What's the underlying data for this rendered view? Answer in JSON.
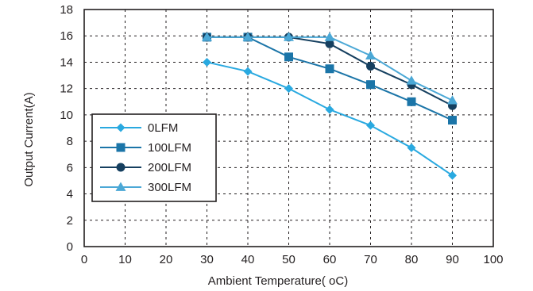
{
  "chart_data": {
    "type": "line",
    "title": "",
    "xlabel": "Ambient Temperature( oC)",
    "ylabel": "Output Current(A)",
    "xlim": [
      0,
      100
    ],
    "ylim": [
      0,
      18
    ],
    "x_ticks": [
      "0",
      "10",
      "20",
      "30",
      "40",
      "50",
      "60",
      "70",
      "80",
      "90",
      "100"
    ],
    "y_ticks": [
      "0",
      "2",
      "4",
      "6",
      "8",
      "10",
      "12",
      "14",
      "16",
      "18"
    ],
    "grid": "dashed",
    "legend_position": "lower-left",
    "series": [
      {
        "name": "0LFM",
        "marker": "diamond",
        "color": "#29a9e0",
        "x": [
          30,
          40,
          50,
          60,
          70,
          80,
          90
        ],
        "y": [
          14.0,
          13.3,
          12.0,
          10.4,
          9.2,
          7.5,
          5.4
        ]
      },
      {
        "name": "100LFM",
        "marker": "square",
        "color": "#1b75a8",
        "x": [
          30,
          40,
          50,
          60,
          70,
          80,
          90
        ],
        "y": [
          15.9,
          15.9,
          14.4,
          13.5,
          12.3,
          11.0,
          9.6
        ]
      },
      {
        "name": "200LFM",
        "marker": "circle",
        "color": "#153f5f",
        "x": [
          30,
          40,
          50,
          60,
          70,
          80,
          90
        ],
        "y": [
          15.9,
          15.9,
          15.9,
          15.4,
          13.7,
          12.3,
          10.7
        ]
      },
      {
        "name": "300LFM",
        "marker": "triangle",
        "color": "#4ba8d6",
        "x": [
          30,
          40,
          50,
          60,
          70,
          80,
          90
        ],
        "y": [
          15.9,
          15.9,
          15.9,
          15.9,
          14.5,
          12.6,
          11.1
        ]
      }
    ]
  }
}
